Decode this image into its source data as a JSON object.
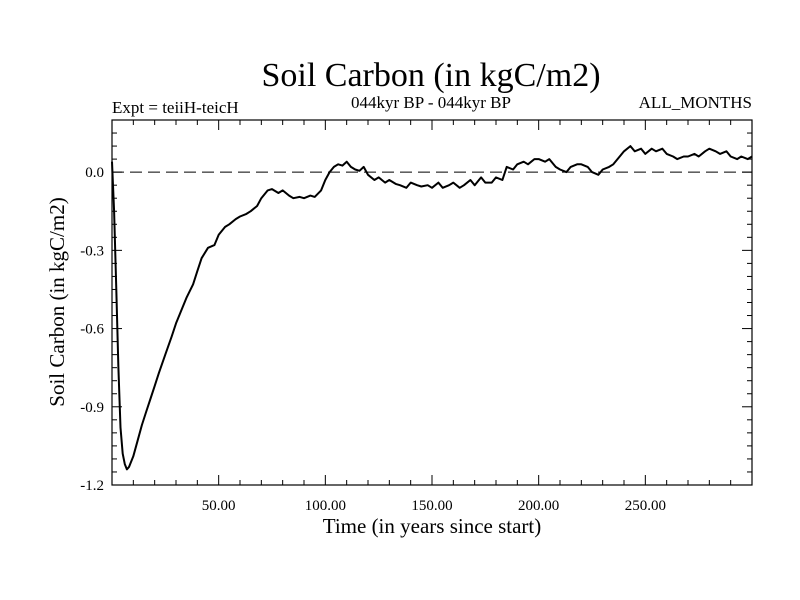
{
  "chart_data": {
    "type": "line",
    "title": "Soil Carbon (in kgC/m2)",
    "subtitle_left": "Expt = teiiH-teicH",
    "subtitle_center": "044kyr BP - 044kyr BP",
    "subtitle_right": "ALL_MONTHS",
    "xlabel": "Time (in years since start)",
    "ylabel": "Soil Carbon (in kgC/m2)",
    "xlim": [
      0,
      300
    ],
    "ylim": [
      -1.2,
      0.2
    ],
    "x_ticks": [
      50,
      100,
      150,
      200,
      250
    ],
    "x_tick_labels": [
      "50.00",
      "100.00",
      "150.00",
      "200.00",
      "250.00"
    ],
    "y_ticks": [
      0.0,
      -0.3,
      -0.6,
      -0.9,
      -1.2
    ],
    "y_tick_labels": [
      "0.0",
      "-0.3",
      "-0.6",
      "-0.9",
      "-1.2"
    ],
    "reference_line": 0.0,
    "series": [
      {
        "name": "teiiH-teicH",
        "x": [
          0,
          1,
          2,
          3,
          4,
          5,
          6,
          7,
          8,
          10,
          12,
          14,
          16,
          18,
          20,
          22,
          25,
          28,
          30,
          32,
          35,
          38,
          40,
          42,
          45,
          48,
          50,
          53,
          55,
          58,
          60,
          63,
          65,
          68,
          70,
          73,
          75,
          78,
          80,
          83,
          85,
          88,
          90,
          93,
          95,
          98,
          100,
          102,
          104,
          106,
          108,
          110,
          112,
          114,
          116,
          118,
          120,
          123,
          125,
          128,
          130,
          133,
          135,
          138,
          140,
          143,
          145,
          148,
          150,
          153,
          155,
          158,
          160,
          163,
          165,
          168,
          170,
          173,
          175,
          178,
          180,
          183,
          185,
          188,
          190,
          193,
          195,
          198,
          200,
          203,
          205,
          208,
          210,
          213,
          215,
          218,
          220,
          223,
          225,
          228,
          230,
          233,
          235,
          238,
          240,
          243,
          245,
          248,
          250,
          253,
          255,
          258,
          260,
          263,
          265,
          268,
          270,
          273,
          275,
          278,
          280,
          283,
          285,
          288,
          290,
          293,
          295,
          298,
          300
        ],
        "values": [
          0.04,
          -0.15,
          -0.45,
          -0.75,
          -0.98,
          -1.08,
          -1.12,
          -1.14,
          -1.13,
          -1.09,
          -1.03,
          -0.97,
          -0.92,
          -0.87,
          -0.82,
          -0.77,
          -0.7,
          -0.63,
          -0.58,
          -0.54,
          -0.48,
          -0.43,
          -0.38,
          -0.33,
          -0.29,
          -0.28,
          -0.24,
          -0.21,
          -0.2,
          -0.18,
          -0.17,
          -0.16,
          -0.15,
          -0.13,
          -0.1,
          -0.07,
          -0.065,
          -0.08,
          -0.07,
          -0.09,
          -0.1,
          -0.095,
          -0.1,
          -0.09,
          -0.095,
          -0.07,
          -0.03,
          0.0,
          0.02,
          0.03,
          0.025,
          0.04,
          0.02,
          0.01,
          0.005,
          0.02,
          -0.01,
          -0.03,
          -0.02,
          -0.04,
          -0.03,
          -0.045,
          -0.05,
          -0.06,
          -0.04,
          -0.05,
          -0.055,
          -0.05,
          -0.06,
          -0.04,
          -0.06,
          -0.05,
          -0.04,
          -0.06,
          -0.05,
          -0.03,
          -0.05,
          -0.02,
          -0.04,
          -0.04,
          -0.02,
          -0.03,
          0.02,
          0.01,
          0.03,
          0.04,
          0.03,
          0.05,
          0.05,
          0.04,
          0.05,
          0.02,
          0.01,
          0.0,
          0.02,
          0.03,
          0.03,
          0.02,
          0.0,
          -0.01,
          0.01,
          0.02,
          0.03,
          0.06,
          0.08,
          0.1,
          0.08,
          0.09,
          0.07,
          0.09,
          0.08,
          0.09,
          0.07,
          0.06,
          0.05,
          0.06,
          0.06,
          0.07,
          0.06,
          0.08,
          0.09,
          0.08,
          0.07,
          0.08,
          0.06,
          0.05,
          0.06,
          0.05,
          0.06
        ]
      }
    ]
  }
}
